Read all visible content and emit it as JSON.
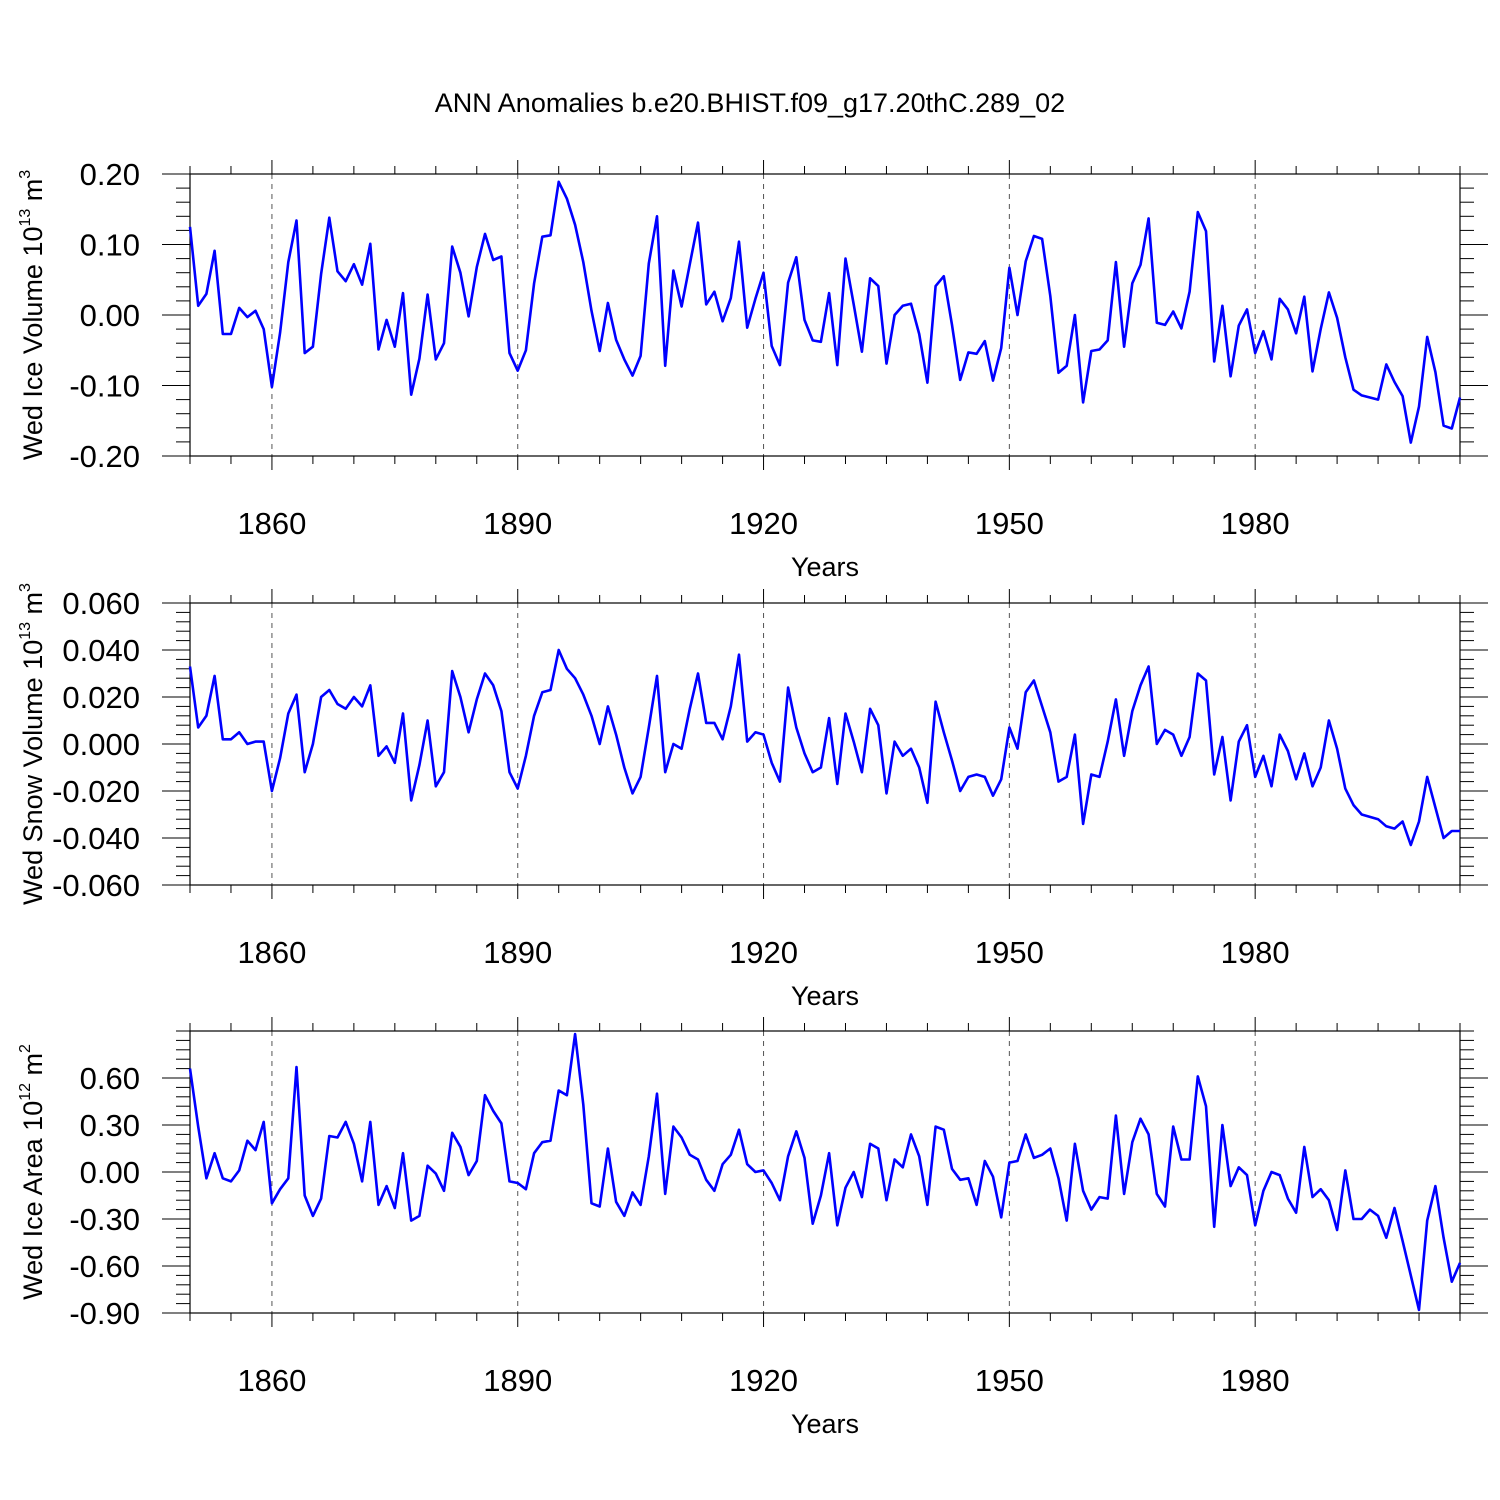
{
  "title": "ANN Anomalies b.e20.BHIST.f09_g17.20thC.289_02",
  "series_color": "#0000ff",
  "chart_data": [
    {
      "type": "line",
      "name": "ice-volume",
      "title": "ANN Anomalies b.e20.BHIST.f09_g17.20thC.289_02",
      "ylabel_main": "Wed Ice Volume 10",
      "ylabel_exp": "13",
      "ylabel_unit": " m",
      "ylabel_unit_exp": "3",
      "xlabel": "Years",
      "xlim": [
        1850,
        2005
      ],
      "ylim": [
        -0.2,
        0.2
      ],
      "yticks": [
        -0.2,
        -0.1,
        0.0,
        0.1,
        0.2
      ],
      "ytick_labels": [
        "-0.20",
        "-0.10",
        "0.00",
        "0.10",
        "0.20"
      ],
      "xticks": [
        1860,
        1890,
        1920,
        1950,
        1980
      ],
      "xtick_labels": [
        "1860",
        "1890",
        "1920",
        "1950",
        "1980"
      ],
      "x_start": 1850,
      "values": [
        0.125,
        0.013,
        0.03,
        0.091,
        -0.027,
        -0.027,
        0.01,
        -0.003,
        0.006,
        -0.02,
        -0.102,
        -0.025,
        0.075,
        0.134,
        -0.054,
        -0.045,
        0.058,
        0.138,
        0.062,
        0.048,
        0.072,
        0.043,
        0.101,
        -0.049,
        -0.007,
        -0.045,
        0.031,
        -0.113,
        -0.062,
        0.029,
        -0.063,
        -0.04,
        0.097,
        0.06,
        -0.002,
        0.068,
        0.115,
        0.078,
        0.083,
        -0.054,
        -0.079,
        -0.05,
        0.045,
        0.111,
        0.113,
        0.189,
        0.165,
        0.128,
        0.075,
        0.006,
        -0.051,
        0.017,
        -0.035,
        -0.063,
        -0.086,
        -0.058,
        0.073,
        0.14,
        -0.072,
        0.063,
        0.012,
        0.072,
        0.131,
        0.015,
        0.033,
        -0.009,
        0.024,
        0.104,
        -0.018,
        0.023,
        0.06,
        -0.044,
        -0.071,
        0.046,
        0.082,
        -0.007,
        -0.036,
        -0.038,
        0.031,
        -0.071,
        0.08,
        0.015,
        -0.052,
        0.052,
        0.041,
        -0.069,
        0.0,
        0.013,
        0.016,
        -0.027,
        -0.096,
        0.041,
        0.055,
        -0.014,
        -0.092,
        -0.053,
        -0.055,
        -0.037,
        -0.093,
        -0.047,
        0.067,
        0.0,
        0.076,
        0.112,
        0.108,
        0.027,
        -0.082,
        -0.072,
        0.0,
        -0.124,
        -0.051,
        -0.049,
        -0.036,
        0.075,
        -0.045,
        0.045,
        0.071,
        0.137,
        -0.011,
        -0.014,
        0.005,
        -0.019,
        0.033,
        0.146,
        0.119,
        -0.066,
        0.013,
        -0.087,
        -0.015,
        0.008,
        -0.054,
        -0.023,
        -0.063,
        0.023,
        0.008,
        -0.026,
        0.026,
        -0.08,
        -0.02,
        0.032,
        -0.004,
        -0.06,
        -0.106,
        -0.114,
        -0.117,
        -0.12,
        -0.07,
        -0.095,
        -0.115,
        -0.181,
        -0.13,
        -0.031,
        -0.081,
        -0.157,
        -0.161,
        -0.117
      ]
    },
    {
      "type": "line",
      "name": "snow-volume",
      "ylabel_main": "Wed Snow Volume 10",
      "ylabel_exp": "13",
      "ylabel_unit": " m",
      "ylabel_unit_exp": "3",
      "xlabel": "Years",
      "xlim": [
        1850,
        2005
      ],
      "ylim": [
        -0.06,
        0.06
      ],
      "yticks": [
        -0.06,
        -0.04,
        -0.02,
        0.0,
        0.02,
        0.04,
        0.06
      ],
      "ytick_labels": [
        "-0.060",
        "-0.040",
        "-0.020",
        "0.000",
        "0.020",
        "0.040",
        "0.060"
      ],
      "xticks": [
        1860,
        1890,
        1920,
        1950,
        1980
      ],
      "xtick_labels": [
        "1860",
        "1890",
        "1920",
        "1950",
        "1980"
      ],
      "x_start": 1850,
      "values": [
        0.033,
        0.007,
        0.012,
        0.029,
        0.002,
        0.002,
        0.005,
        0.0,
        0.001,
        0.001,
        -0.02,
        -0.006,
        0.013,
        0.021,
        -0.012,
        0.0,
        0.02,
        0.023,
        0.017,
        0.015,
        0.02,
        0.016,
        0.025,
        -0.005,
        -0.001,
        -0.008,
        0.013,
        -0.024,
        -0.009,
        0.01,
        -0.018,
        -0.012,
        0.031,
        0.02,
        0.005,
        0.019,
        0.03,
        0.025,
        0.014,
        -0.012,
        -0.019,
        -0.005,
        0.012,
        0.022,
        0.023,
        0.04,
        0.032,
        0.028,
        0.021,
        0.012,
        0.0,
        0.016,
        0.004,
        -0.01,
        -0.021,
        -0.014,
        0.007,
        0.029,
        -0.012,
        0.0,
        -0.002,
        0.015,
        0.03,
        0.009,
        0.009,
        0.002,
        0.016,
        0.038,
        0.001,
        0.005,
        0.004,
        -0.008,
        -0.016,
        0.024,
        0.007,
        -0.004,
        -0.012,
        -0.01,
        0.011,
        -0.017,
        0.013,
        0.001,
        -0.012,
        0.015,
        0.008,
        -0.021,
        0.001,
        -0.005,
        -0.002,
        -0.01,
        -0.025,
        0.018,
        0.005,
        -0.007,
        -0.02,
        -0.014,
        -0.013,
        -0.014,
        -0.022,
        -0.015,
        0.007,
        -0.002,
        0.022,
        0.027,
        0.016,
        0.005,
        -0.016,
        -0.014,
        0.004,
        -0.034,
        -0.013,
        -0.014,
        0.001,
        0.019,
        -0.005,
        0.014,
        0.025,
        0.033,
        0.0,
        0.006,
        0.004,
        -0.005,
        0.003,
        0.03,
        0.027,
        -0.013,
        0.003,
        -0.024,
        0.001,
        0.008,
        -0.014,
        -0.005,
        -0.018,
        0.004,
        -0.003,
        -0.015,
        -0.004,
        -0.018,
        -0.01,
        0.01,
        -0.002,
        -0.019,
        -0.026,
        -0.03,
        -0.031,
        -0.032,
        -0.035,
        -0.036,
        -0.033,
        -0.043,
        -0.033,
        -0.014,
        -0.027,
        -0.04,
        -0.037,
        -0.037
      ]
    },
    {
      "type": "line",
      "name": "ice-area",
      "ylabel_main": "Wed Ice Area 10",
      "ylabel_exp": "12",
      "ylabel_unit": " m",
      "ylabel_unit_exp": "2",
      "xlabel": "Years",
      "xlim": [
        1850,
        2005
      ],
      "ylim": [
        -0.9,
        0.9
      ],
      "yticks": [
        -0.9,
        -0.6,
        -0.3,
        0.0,
        0.3,
        0.6
      ],
      "ytick_labels": [
        "-0.90",
        "-0.60",
        "-0.30",
        "0.00",
        "0.30",
        "0.60"
      ],
      "xticks": [
        1860,
        1890,
        1920,
        1950,
        1980
      ],
      "xtick_labels": [
        "1860",
        "1890",
        "1920",
        "1950",
        "1980"
      ],
      "x_start": 1850,
      "values": [
        0.66,
        0.29,
        -0.04,
        0.12,
        -0.04,
        -0.06,
        0.01,
        0.2,
        0.14,
        0.32,
        -0.2,
        -0.11,
        -0.04,
        0.67,
        -0.15,
        -0.28,
        -0.17,
        0.23,
        0.22,
        0.32,
        0.18,
        -0.06,
        0.32,
        -0.21,
        -0.09,
        -0.23,
        0.12,
        -0.31,
        -0.28,
        0.04,
        -0.01,
        -0.12,
        0.25,
        0.16,
        -0.02,
        0.07,
        0.49,
        0.39,
        0.31,
        -0.06,
        -0.07,
        -0.11,
        0.12,
        0.19,
        0.2,
        0.52,
        0.49,
        0.88,
        0.43,
        -0.2,
        -0.22,
        0.15,
        -0.19,
        -0.28,
        -0.13,
        -0.21,
        0.1,
        0.5,
        -0.14,
        0.29,
        0.22,
        0.11,
        0.08,
        -0.05,
        -0.12,
        0.05,
        0.11,
        0.27,
        0.05,
        0.0,
        0.01,
        -0.07,
        -0.18,
        0.1,
        0.26,
        0.09,
        -0.33,
        -0.15,
        0.12,
        -0.34,
        -0.1,
        0.0,
        -0.16,
        0.18,
        0.15,
        -0.18,
        0.08,
        0.03,
        0.24,
        0.1,
        -0.21,
        0.29,
        0.27,
        0.02,
        -0.05,
        -0.04,
        -0.21,
        0.07,
        -0.03,
        -0.29,
        0.06,
        0.07,
        0.24,
        0.09,
        0.11,
        0.15,
        -0.04,
        -0.31,
        0.18,
        -0.12,
        -0.24,
        -0.16,
        -0.17,
        0.36,
        -0.14,
        0.19,
        0.34,
        0.24,
        -0.14,
        -0.22,
        0.29,
        0.08,
        0.08,
        0.61,
        0.42,
        -0.35,
        0.3,
        -0.09,
        0.03,
        -0.02,
        -0.34,
        -0.12,
        0.0,
        -0.02,
        -0.17,
        -0.26,
        0.16,
        -0.16,
        -0.11,
        -0.18,
        -0.37,
        0.01,
        -0.3,
        -0.3,
        -0.24,
        -0.28,
        -0.42,
        -0.23,
        -0.44,
        -0.66,
        -0.88,
        -0.31,
        -0.09,
        -0.42,
        -0.7,
        -0.58
      ]
    }
  ]
}
